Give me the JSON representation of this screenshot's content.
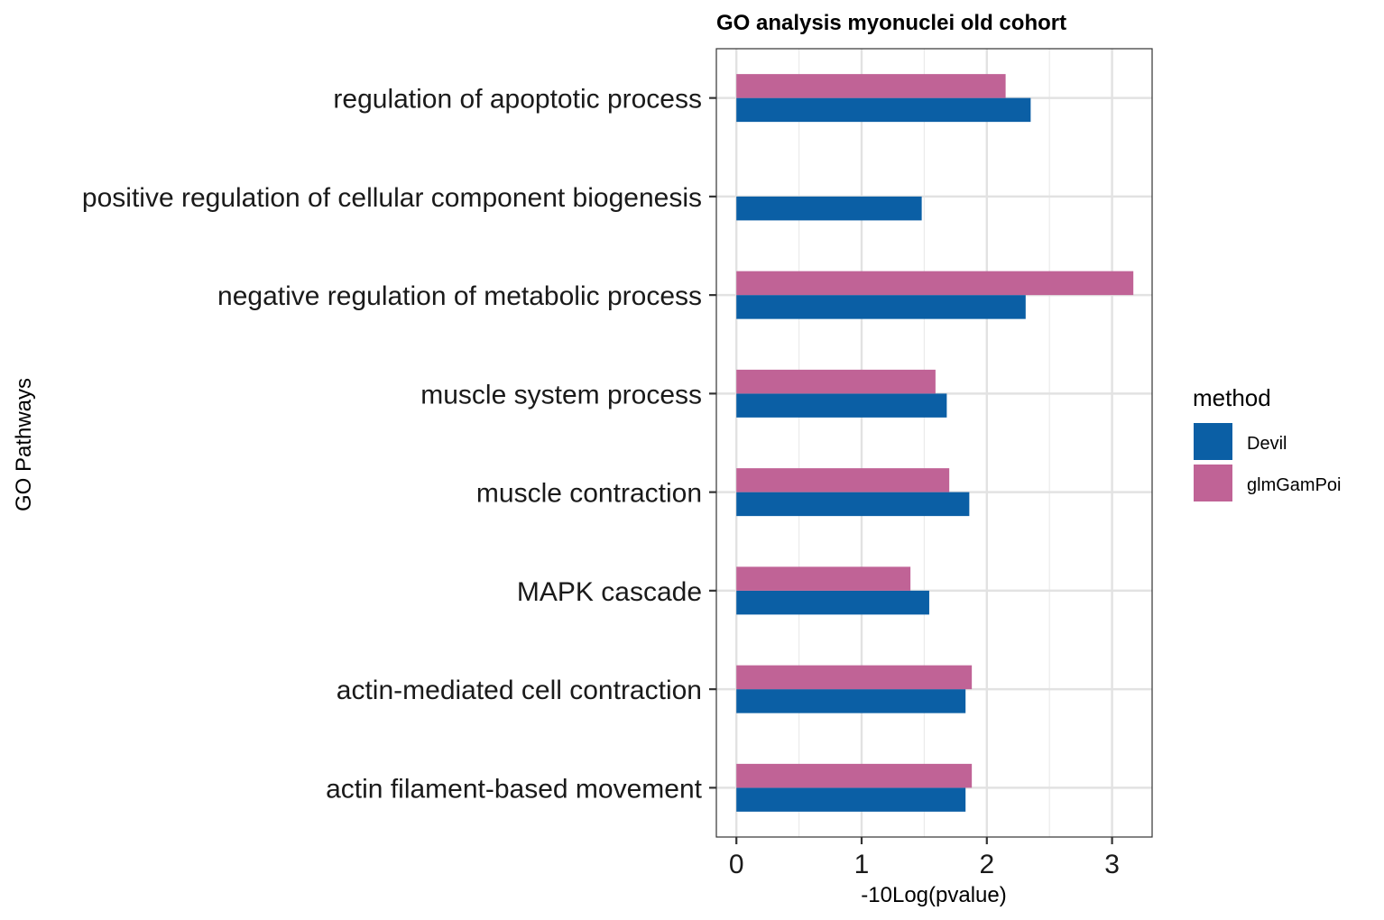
{
  "chart_data": {
    "type": "bar",
    "orientation": "horizontal",
    "title": "GO analysis myonuclei old cohort",
    "xlabel": "-10Log(pvalue)",
    "ylabel": "GO Pathways",
    "xlim": [
      -0.16,
      3.32
    ],
    "xticks": [
      0,
      1,
      2,
      3
    ],
    "grid": true,
    "legend": {
      "title": "method",
      "position": "right"
    },
    "categories": [
      "regulation of apoptotic process",
      "positive regulation of cellular component biogenesis",
      "negative regulation of metabolic process",
      "muscle system process",
      "muscle contraction",
      "MAPK cascade",
      "actin-mediated cell contraction",
      "actin filament-based movement"
    ],
    "series": [
      {
        "name": "Devil",
        "color": "#0b5fa5",
        "values": [
          2.35,
          1.48,
          2.31,
          1.68,
          1.86,
          1.54,
          1.83,
          1.83
        ]
      },
      {
        "name": "glmGamPoi",
        "color": "#c06396",
        "values": [
          2.15,
          null,
          3.17,
          1.59,
          1.7,
          1.39,
          1.88,
          1.88
        ]
      }
    ]
  }
}
